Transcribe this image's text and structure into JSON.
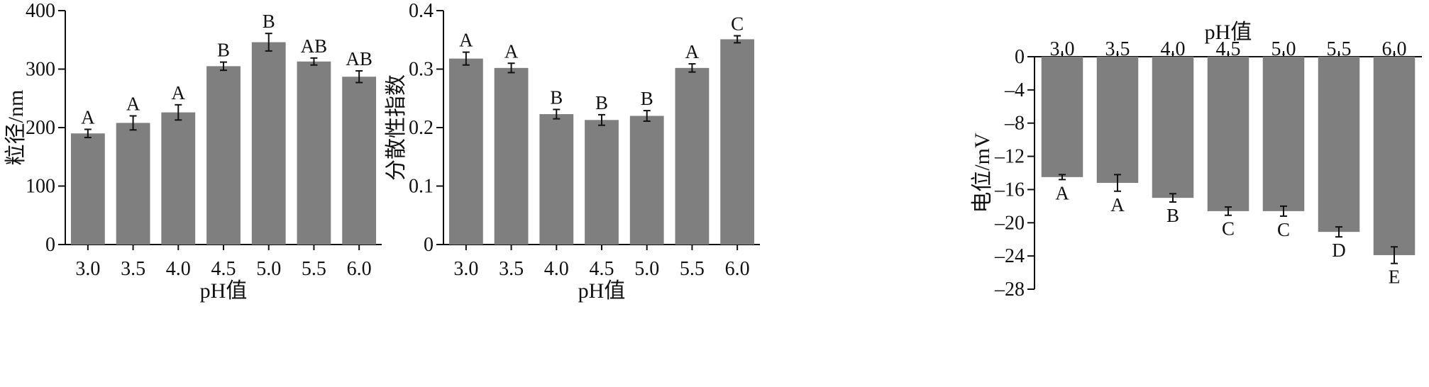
{
  "chart_data": [
    {
      "type": "bar",
      "xlabel": "pH值",
      "ylabel": "粒径/nm",
      "categories": [
        "3.0",
        "3.5",
        "4.0",
        "4.5",
        "5.0",
        "5.5",
        "6.0"
      ],
      "values": [
        190,
        208,
        226,
        305,
        346,
        313,
        287
      ],
      "errors": [
        7,
        12,
        13,
        7,
        15,
        6,
        10
      ],
      "letters": [
        "A",
        "A",
        "A",
        "B",
        "B",
        "AB",
        "AB"
      ],
      "ylim": [
        0,
        400
      ],
      "yticks": [
        0,
        100,
        200,
        300,
        400
      ],
      "ytick_labels": [
        "0",
        "100",
        "200",
        "300",
        "400"
      ],
      "bar_color": "#7f7f7f",
      "x_axis_position": "bottom"
    },
    {
      "type": "bar",
      "xlabel": "pH值",
      "ylabel": "分散性指数",
      "categories": [
        "3.0",
        "3.5",
        "4.0",
        "4.5",
        "5.0",
        "5.5",
        "6.0"
      ],
      "values": [
        0.318,
        0.302,
        0.223,
        0.213,
        0.22,
        0.302,
        0.351
      ],
      "errors": [
        0.011,
        0.008,
        0.008,
        0.009,
        0.009,
        0.007,
        0.006
      ],
      "letters": [
        "A",
        "A",
        "B",
        "B",
        "B",
        "A",
        "C"
      ],
      "ylim": [
        0,
        0.4
      ],
      "yticks": [
        0,
        0.1,
        0.2,
        0.3,
        0.4
      ],
      "ytick_labels": [
        "0",
        "0.1",
        "0.2",
        "0.3",
        "0.4"
      ],
      "bar_color": "#7f7f7f",
      "x_axis_position": "bottom"
    },
    {
      "type": "bar",
      "xlabel": "pH值",
      "ylabel": "电位/mV",
      "categories": [
        "3.0",
        "3.5",
        "4.0",
        "4.5",
        "5.0",
        "5.5",
        "6.0"
      ],
      "values": [
        -14.5,
        -15.2,
        -17.0,
        -18.6,
        -18.6,
        -21.1,
        -23.9
      ],
      "errors": [
        0.3,
        1.0,
        0.5,
        0.5,
        0.6,
        0.6,
        1.0
      ],
      "letters": [
        "A",
        "A",
        "B",
        "C",
        "C",
        "D",
        "E"
      ],
      "ylim": [
        -28,
        0
      ],
      "yticks": [
        0,
        -4,
        -8,
        -12,
        -16,
        -20,
        -24,
        -28
      ],
      "ytick_labels": [
        "0",
        "–4",
        "–8",
        "–12",
        "–16",
        "–20",
        "–24",
        "–28"
      ],
      "bar_color": "#7f7f7f",
      "x_axis_position": "top"
    }
  ]
}
